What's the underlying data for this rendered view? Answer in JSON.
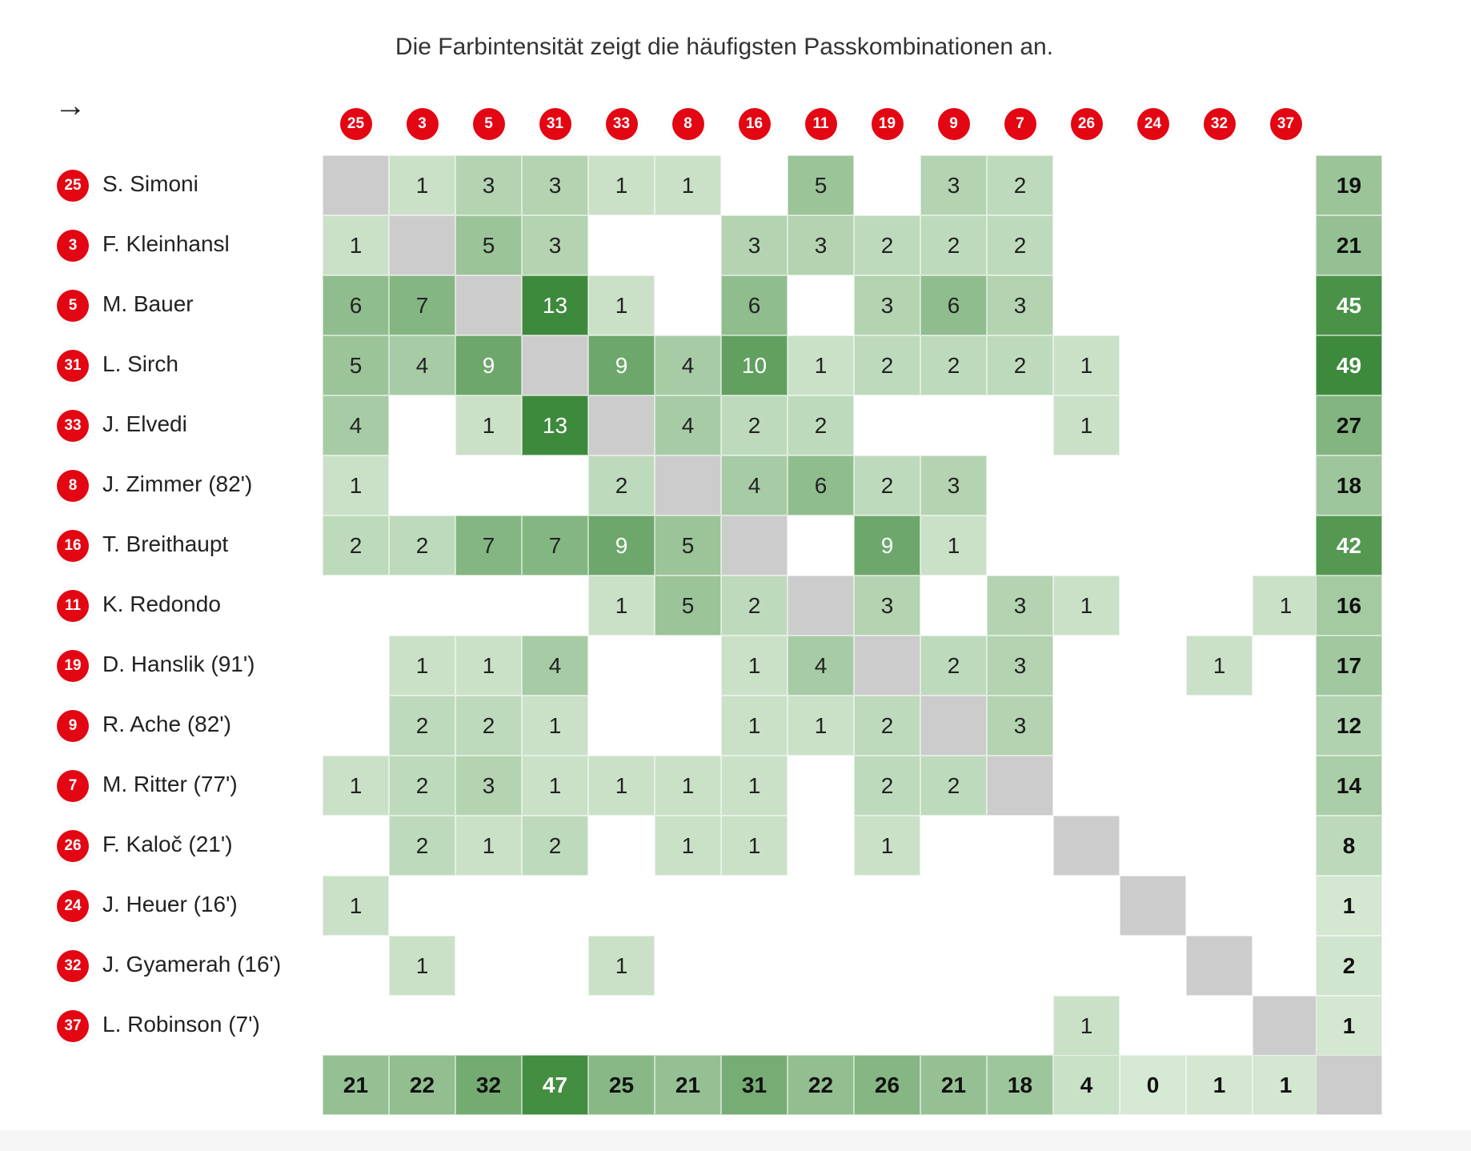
{
  "subtitle": "Die Farbintensität zeigt die häufigsten Passkombinationen an.",
  "direction_symbol": "→",
  "colors": {
    "badge": "#e30613",
    "diagonal": "#cccccc",
    "scale_low": "#e3f1e1",
    "scale_high": "#3e8a3c"
  },
  "chart_data": {
    "type": "heatmap",
    "title": "",
    "players": [
      {
        "number": "25",
        "name": "S. Simoni"
      },
      {
        "number": "3",
        "name": "F. Kleinhansl"
      },
      {
        "number": "5",
        "name": "M. Bauer"
      },
      {
        "number": "31",
        "name": "L. Sirch"
      },
      {
        "number": "33",
        "name": "J. Elvedi"
      },
      {
        "number": "8",
        "name": "J. Zimmer (82')"
      },
      {
        "number": "16",
        "name": "T. Breithaupt"
      },
      {
        "number": "11",
        "name": "K. Redondo"
      },
      {
        "number": "19",
        "name": "D. Hanslik (91')"
      },
      {
        "number": "9",
        "name": "R. Ache (82')"
      },
      {
        "number": "7",
        "name": "M. Ritter (77')"
      },
      {
        "number": "26",
        "name": "F. Kaloč (21')"
      },
      {
        "number": "24",
        "name": "J. Heuer (16')"
      },
      {
        "number": "32",
        "name": "J. Gyamerah (16')"
      },
      {
        "number": "37",
        "name": "L. Robinson (7')"
      }
    ],
    "matrix": [
      [
        null,
        1,
        3,
        3,
        1,
        1,
        null,
        5,
        null,
        3,
        2,
        null,
        null,
        null,
        null
      ],
      [
        1,
        null,
        5,
        3,
        null,
        null,
        3,
        3,
        2,
        2,
        2,
        null,
        null,
        null,
        null
      ],
      [
        6,
        7,
        null,
        13,
        1,
        null,
        6,
        null,
        3,
        6,
        3,
        null,
        null,
        null,
        null
      ],
      [
        5,
        4,
        9,
        null,
        9,
        4,
        10,
        1,
        2,
        2,
        2,
        1,
        null,
        null,
        null
      ],
      [
        4,
        null,
        1,
        13,
        null,
        4,
        2,
        2,
        null,
        null,
        null,
        1,
        null,
        null,
        null
      ],
      [
        1,
        null,
        null,
        null,
        2,
        null,
        4,
        6,
        2,
        3,
        null,
        null,
        null,
        null,
        null
      ],
      [
        2,
        2,
        7,
        7,
        9,
        5,
        null,
        null,
        9,
        1,
        null,
        null,
        null,
        null,
        null
      ],
      [
        null,
        null,
        null,
        null,
        1,
        5,
        2,
        null,
        3,
        null,
        3,
        1,
        null,
        null,
        1
      ],
      [
        null,
        1,
        1,
        4,
        null,
        null,
        1,
        4,
        null,
        2,
        3,
        null,
        null,
        1,
        null
      ],
      [
        null,
        2,
        2,
        1,
        null,
        null,
        1,
        1,
        2,
        null,
        3,
        null,
        null,
        null,
        null
      ],
      [
        1,
        2,
        3,
        1,
        1,
        1,
        1,
        null,
        2,
        2,
        null,
        null,
        null,
        null,
        null
      ],
      [
        null,
        2,
        1,
        2,
        null,
        1,
        1,
        null,
        1,
        null,
        null,
        null,
        null,
        null,
        null
      ],
      [
        1,
        null,
        null,
        null,
        null,
        null,
        null,
        null,
        null,
        null,
        null,
        null,
        null,
        null,
        null
      ],
      [
        null,
        1,
        null,
        null,
        1,
        null,
        null,
        null,
        null,
        null,
        null,
        null,
        null,
        null,
        null
      ],
      [
        null,
        null,
        null,
        null,
        null,
        null,
        null,
        null,
        null,
        null,
        null,
        1,
        null,
        null,
        null
      ]
    ],
    "row_totals": [
      19,
      21,
      45,
      49,
      27,
      18,
      42,
      16,
      17,
      12,
      14,
      8,
      1,
      2,
      1
    ],
    "column_totals": [
      21,
      22,
      32,
      47,
      25,
      21,
      31,
      22,
      26,
      21,
      18,
      4,
      0,
      1,
      1
    ]
  }
}
